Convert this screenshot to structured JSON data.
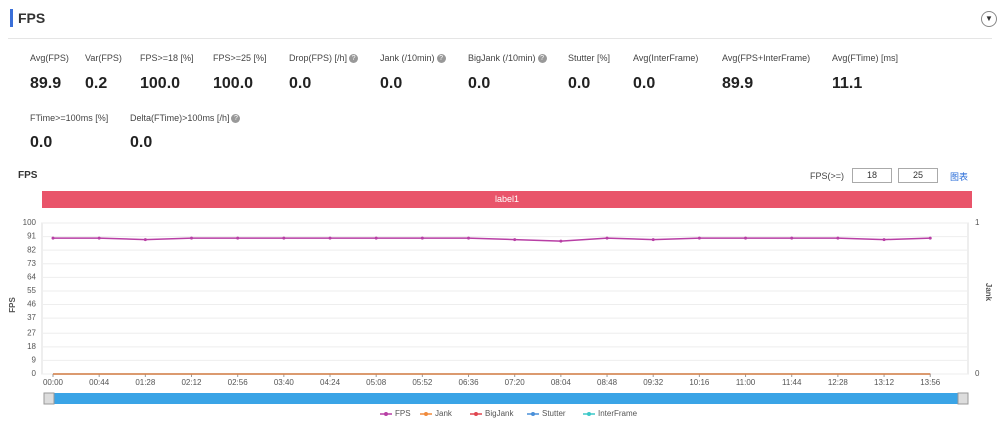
{
  "header": {
    "title": "FPS"
  },
  "stats": [
    {
      "label": "Avg(FPS)",
      "value": "89.9"
    },
    {
      "label": "Var(FPS)",
      "value": "0.2"
    },
    {
      "label": "FPS>=18 [%]",
      "value": "100.0"
    },
    {
      "label": "FPS>=25 [%]",
      "value": "100.0"
    },
    {
      "label": "Drop(FPS) [/h]",
      "value": "0.0"
    },
    {
      "label": "Jank (/10min)",
      "value": "0.0"
    },
    {
      "label": "BigJank (/10min)",
      "value": "0.0"
    },
    {
      "label": "Stutter [%]",
      "value": "0.0"
    },
    {
      "label": "Avg(InterFrame)",
      "value": "0.0"
    },
    {
      "label": "Avg(FPS+InterFrame)",
      "value": "89.9"
    },
    {
      "label": "Avg(FTime) [ms]",
      "value": "11.1"
    },
    {
      "label": "FTime>=100ms [%]",
      "value": "0.0"
    },
    {
      "label": "Delta(FTime)>100ms [/h]",
      "value": "0.0"
    }
  ],
  "chart_data": {
    "type": "line",
    "title": "FPS",
    "threshold_label": "FPS(>=)",
    "thresholds": [
      "18",
      "25"
    ],
    "link": "图表",
    "band_label": "label1",
    "y_label": "FPS",
    "y2_label": "Jank",
    "x": [
      0,
      44,
      88,
      132,
      176,
      220,
      264,
      308,
      352,
      396,
      440,
      484,
      528,
      572,
      616,
      660,
      704,
      748,
      792,
      836
    ],
    "xlim": [
      0,
      872
    ],
    "xticks": [
      {
        "value": 0,
        "label": "00:00"
      },
      {
        "value": 44,
        "label": "00:44"
      },
      {
        "value": 88,
        "label": "01:28"
      },
      {
        "value": 132,
        "label": "02:12"
      },
      {
        "value": 176,
        "label": "02:56"
      },
      {
        "value": 220,
        "label": "03:40"
      },
      {
        "value": 264,
        "label": "04:24"
      },
      {
        "value": 308,
        "label": "05:08"
      },
      {
        "value": 352,
        "label": "05:52"
      },
      {
        "value": 396,
        "label": "06:36"
      },
      {
        "value": 440,
        "label": "07:20"
      },
      {
        "value": 484,
        "label": "08:04"
      },
      {
        "value": 528,
        "label": "08:48"
      },
      {
        "value": 572,
        "label": "09:32"
      },
      {
        "value": 616,
        "label": "10:16"
      },
      {
        "value": 660,
        "label": "11:00"
      },
      {
        "value": 704,
        "label": "11:44"
      },
      {
        "value": 748,
        "label": "12:28"
      },
      {
        "value": 792,
        "label": "13:12"
      },
      {
        "value": 836,
        "label": "13:56"
      }
    ],
    "ylim": [
      0,
      100
    ],
    "yticks": [
      0,
      9,
      18,
      27,
      37,
      46,
      55,
      64,
      73,
      82,
      91,
      100
    ],
    "y2lim": [
      0,
      1
    ],
    "y2ticks": [
      0,
      1
    ],
    "series": [
      {
        "name": "FPS",
        "color": "#b83fa5",
        "values": [
          90,
          90,
          89,
          90,
          90,
          90,
          90,
          90,
          90,
          90,
          89,
          88,
          90,
          89,
          90,
          90,
          90,
          90,
          89,
          90
        ]
      },
      {
        "name": "Jank",
        "color": "#f08a3c",
        "axis": "y2",
        "values": [
          0,
          0,
          0,
          0,
          0,
          0,
          0,
          0,
          0,
          0,
          0,
          0,
          0,
          0,
          0,
          0,
          0,
          0,
          0,
          0
        ]
      },
      {
        "name": "BigJank",
        "color": "#e0454f",
        "values": [
          0,
          0,
          0,
          0,
          0,
          0,
          0,
          0,
          0,
          0,
          0,
          0,
          0,
          0,
          0,
          0,
          0,
          0,
          0,
          0
        ]
      },
      {
        "name": "Stutter",
        "color": "#4a90d9",
        "values": [
          0,
          0,
          0,
          0,
          0,
          0,
          0,
          0,
          0,
          0,
          0,
          0,
          0,
          0,
          0,
          0,
          0,
          0,
          0,
          0
        ]
      },
      {
        "name": "InterFrame",
        "color": "#3cc8c8",
        "values": [
          0,
          0,
          0,
          0,
          0,
          0,
          0,
          0,
          0,
          0,
          0,
          0,
          0,
          0,
          0,
          0,
          0,
          0,
          0,
          0
        ]
      }
    ]
  }
}
